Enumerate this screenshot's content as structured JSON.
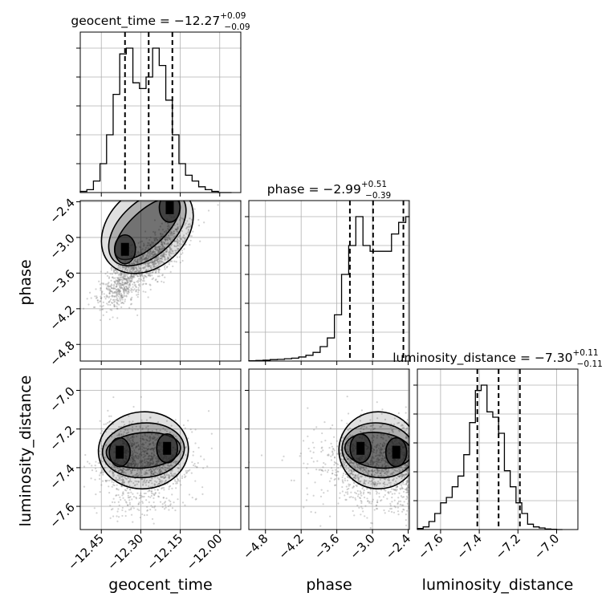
{
  "chart_data": {
    "type": "corner",
    "parameters": [
      "geocent_time",
      "phase",
      "luminosity_distance"
    ],
    "titles": [
      {
        "param": "geocent_time",
        "prefix": "geocent_time = ",
        "median": "−12.27",
        "plus": "+0.09",
        "minus": "−0.09"
      },
      {
        "param": "phase",
        "prefix": "phase = ",
        "median": "−2.99",
        "plus": "+0.51",
        "minus": "−0.39"
      },
      {
        "param": "luminosity_distance",
        "prefix": "luminosity_distance = ",
        "median": "−7.30",
        "plus": "+0.11",
        "minus": "−0.11"
      }
    ],
    "axis_labels": {
      "geocent_time": "geocent_time",
      "phase": "phase",
      "luminosity_distance": "luminosity_distance"
    },
    "ranges": {
      "geocent_time": [
        -12.53,
        -11.92
      ],
      "phase": [
        -5.08,
        -2.38
      ],
      "luminosity_distance": [
        -7.72,
        -6.89
      ]
    },
    "ticks": {
      "geocent_time": [
        {
          "v": -12.45,
          "t": "−12.45"
        },
        {
          "v": -12.3,
          "t": "−12.30"
        },
        {
          "v": -12.15,
          "t": "−12.15"
        },
        {
          "v": -12.0,
          "t": "−12.00"
        }
      ],
      "phase": [
        {
          "v": -4.8,
          "t": "−4.8"
        },
        {
          "v": -4.2,
          "t": "−4.2"
        },
        {
          "v": -3.6,
          "t": "−3.6"
        },
        {
          "v": -3.0,
          "t": "−3.0"
        },
        {
          "v": -2.4,
          "t": "−2.4"
        }
      ],
      "luminosity_distance": [
        {
          "v": -7.6,
          "t": "−7.6"
        },
        {
          "v": -7.4,
          "t": "−7.4"
        },
        {
          "v": -7.2,
          "t": "−7.2"
        },
        {
          "v": -7.0,
          "t": "−7.0"
        }
      ]
    },
    "quantiles": {
      "geocent_time": [
        -12.36,
        -12.27,
        -12.18
      ],
      "phase": [
        -3.38,
        -2.99,
        -2.48
      ],
      "luminosity_distance": [
        -7.41,
        -7.3,
        -7.19
      ]
    },
    "histograms": {
      "geocent_time": {
        "edges": [
          -12.53,
          -12.505,
          -12.48,
          -12.455,
          -12.43,
          -12.405,
          -12.38,
          -12.355,
          -12.33,
          -12.305,
          -12.28,
          -12.255,
          -12.23,
          -12.205,
          -12.18,
          -12.155,
          -12.13,
          -12.105,
          -12.08,
          -12.055,
          -12.03,
          -12.005,
          -11.98,
          -11.955
        ],
        "values": [
          0.2,
          0.5,
          2,
          5,
          10,
          17,
          24,
          25,
          19,
          18,
          20,
          25,
          22,
          16,
          10,
          5,
          3,
          2,
          1,
          0.5,
          0.2,
          0,
          0
        ]
      },
      "phase": {
        "edges": [
          -5.08,
          -4.96,
          -4.84,
          -4.72,
          -4.6,
          -4.48,
          -4.36,
          -4.24,
          -4.12,
          -4.0,
          -3.88,
          -3.76,
          -3.64,
          -3.52,
          -3.4,
          -3.28,
          -3.16,
          -3.04,
          -2.92,
          -2.8,
          -2.68,
          -2.56,
          -2.44,
          -2.38
        ],
        "values": [
          0.05,
          0.1,
          0.15,
          0.25,
          0.3,
          0.4,
          0.5,
          0.7,
          1,
          1.5,
          2.5,
          4,
          8,
          15,
          20,
          25,
          20,
          19,
          19,
          19,
          22,
          24,
          25
        ]
      },
      "luminosity_distance": {
        "edges": [
          -7.72,
          -7.69,
          -7.66,
          -7.63,
          -7.6,
          -7.57,
          -7.54,
          -7.51,
          -7.48,
          -7.45,
          -7.42,
          -7.39,
          -7.36,
          -7.33,
          -7.3,
          -7.27,
          -7.24,
          -7.21,
          -7.18,
          -7.15,
          -7.12,
          -7.09,
          -7.06,
          -7.03,
          -7.0,
          -6.97
        ],
        "values": [
          0.2,
          0.5,
          1.5,
          3,
          5,
          6,
          8,
          10,
          14,
          20,
          26,
          27,
          22,
          21,
          18,
          11,
          8,
          5,
          3,
          1,
          0.5,
          0.3,
          0.1,
          0.05,
          0
        ]
      }
    },
    "density_2d": [
      {
        "x": "geocent_time",
        "y": "phase",
        "corr": 0.85,
        "blobs": [
          {
            "x": -12.36,
            "y": -3.2
          },
          {
            "x": -12.19,
            "y": -2.5
          }
        ]
      },
      {
        "x": "geocent_time",
        "y": "luminosity_distance",
        "corr": 0.1,
        "blobs": [
          {
            "x": -12.38,
            "y": -7.32
          },
          {
            "x": -12.2,
            "y": -7.3
          }
        ]
      },
      {
        "x": "phase",
        "y": "luminosity_distance",
        "corr": 0.0,
        "blobs": [
          {
            "x": -3.2,
            "y": -7.3
          },
          {
            "x": -2.6,
            "y": -7.32
          }
        ]
      }
    ],
    "grid": true,
    "colors": {
      "line": "#000000",
      "grid": "#b0b0b0",
      "scatter": "#7f7f7f",
      "density": "#000000"
    }
  }
}
